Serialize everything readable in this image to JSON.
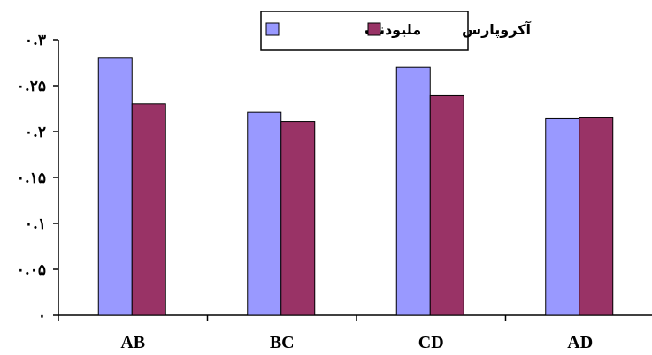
{
  "chart_data": {
    "type": "bar",
    "categories": [
      "AB",
      "BC",
      "CD",
      "AD"
    ],
    "series": [
      {
        "name": "ملیودنت",
        "color": "#9999FF",
        "values": [
          0.28,
          0.221,
          0.27,
          0.214
        ]
      },
      {
        "name": "آکروپارس",
        "color": "#993366",
        "values": [
          0.23,
          0.211,
          0.239,
          0.215
        ]
      }
    ],
    "ylim": [
      0,
      0.3
    ],
    "yticks": [
      0,
      0.05,
      0.1,
      0.15,
      0.2,
      0.25,
      0.3
    ],
    "ytick_labels": [
      "۰",
      "۰.۰۵",
      "۰.۱",
      "۰.۱۵",
      "۰.۲",
      "۰.۲۵",
      "۰.۳"
    ],
    "title": "",
    "xlabel": "",
    "ylabel": "",
    "grid": false,
    "legend_position": "top-right"
  }
}
